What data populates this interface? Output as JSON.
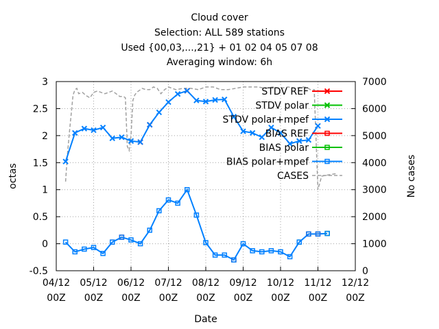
{
  "chart_data": {
    "type": "line",
    "title_lines": [
      "Cloud cover",
      "Selection: ALL    589 stations",
      "Used {00,03,...,21} + 01 02 04 05 07 08",
      "Averaging window:  6h"
    ],
    "xlabel": "Date",
    "ylabel": "octas",
    "y2label": "No cases",
    "xlim": [
      0,
      8
    ],
    "ylim": [
      -0.5,
      3
    ],
    "y2lim": [
      0,
      7000
    ],
    "xticks": [
      {
        "x": 0,
        "line1": "04/12",
        "line2": "00Z"
      },
      {
        "x": 1,
        "line1": "05/12",
        "line2": "00Z"
      },
      {
        "x": 2,
        "line1": "06/12",
        "line2": "00Z"
      },
      {
        "x": 3,
        "line1": "07/12",
        "line2": "00Z"
      },
      {
        "x": 4,
        "line1": "08/12",
        "line2": "00Z"
      },
      {
        "x": 5,
        "line1": "09/12",
        "line2": "00Z"
      },
      {
        "x": 6,
        "line1": "10/12",
        "line2": "00Z"
      },
      {
        "x": 7,
        "line1": "11/12",
        "line2": "00Z"
      },
      {
        "x": 8,
        "line1": "12/12",
        "line2": "00Z"
      }
    ],
    "yticks": [
      "-0.5",
      "0",
      "0.5",
      "1",
      "1.5",
      "2",
      "2.5",
      "3"
    ],
    "y2ticks": [
      "0",
      "1000",
      "2000",
      "3000",
      "4000",
      "5000",
      "6000",
      "7000"
    ],
    "grid": true,
    "legend_position": "top-right",
    "legend": [
      {
        "label": "STDV REF",
        "color": "#ff0000",
        "marker": "x"
      },
      {
        "label": "STDV polar",
        "color": "#00c000",
        "marker": "x"
      },
      {
        "label": "STDV polar+mpef",
        "color": "#0080ff",
        "marker": "x"
      },
      {
        "label": "BIAS REF",
        "color": "#ff0000",
        "marker": "square"
      },
      {
        "label": "BIAS polar",
        "color": "#00c000",
        "marker": "square"
      },
      {
        "label": "BIAS polar+mpef",
        "color": "#0080ff",
        "marker": "square"
      },
      {
        "label": "CASES",
        "color": "#a0a0a0",
        "marker": "none"
      }
    ],
    "series": [
      {
        "name": "STDV polar+mpef",
        "axis": "y",
        "x": [
          0.25,
          0.5,
          0.75,
          1.0,
          1.25,
          1.5,
          1.75,
          2.0,
          2.25,
          2.5,
          2.75,
          3.0,
          3.25,
          3.5,
          3.75,
          4.0,
          4.25,
          4.5,
          4.75,
          5.0,
          5.25,
          5.5,
          5.75,
          6.0,
          6.25,
          6.5,
          6.75,
          7.0,
          7.25
        ],
        "y": [
          1.52,
          2.05,
          2.13,
          2.1,
          2.15,
          1.95,
          1.97,
          1.9,
          1.88,
          2.2,
          2.43,
          2.62,
          2.77,
          2.83,
          2.65,
          2.63,
          2.66,
          2.67,
          2.35,
          2.08,
          2.05,
          1.97,
          2.15,
          2.05,
          1.85,
          1.9,
          1.92,
          2.18,
          null
        ]
      },
      {
        "name": "BIAS polar+mpef",
        "axis": "y",
        "x": [
          0.25,
          0.5,
          0.75,
          1.0,
          1.25,
          1.5,
          1.75,
          2.0,
          2.25,
          2.5,
          2.75,
          3.0,
          3.25,
          3.5,
          3.75,
          4.0,
          4.25,
          4.5,
          4.75,
          5.0,
          5.25,
          5.5,
          5.75,
          6.0,
          6.25,
          6.5,
          6.75,
          7.0,
          7.25
        ],
        "y": [
          0.03,
          -0.15,
          -0.1,
          -0.07,
          -0.18,
          0.03,
          0.12,
          0.07,
          0.0,
          0.25,
          0.61,
          0.81,
          0.75,
          1.0,
          0.53,
          0.02,
          -0.21,
          -0.21,
          -0.3,
          0.0,
          -0.13,
          -0.15,
          -0.13,
          -0.15,
          -0.24,
          0.03,
          0.18,
          0.18,
          0.19
        ]
      },
      {
        "name": "CASES",
        "axis": "y2",
        "x": [
          0.25,
          0.3,
          0.35,
          0.4,
          0.45,
          0.5,
          0.55,
          0.6,
          0.7,
          0.8,
          0.9,
          1.0,
          1.1,
          1.2,
          1.3,
          1.4,
          1.5,
          1.6,
          1.7,
          1.8,
          1.85,
          1.9,
          1.95,
          2.0,
          2.05,
          2.1,
          2.15,
          2.2,
          2.3,
          2.4,
          2.5,
          2.6,
          2.7,
          2.8,
          2.9,
          3.0,
          3.2,
          3.4,
          3.6,
          3.8,
          4.0,
          4.2,
          4.4,
          4.6,
          4.8,
          5.0,
          5.2,
          5.4,
          5.6,
          5.8,
          6.0,
          6.2,
          6.4,
          6.6,
          6.7,
          6.8,
          6.9,
          7.0,
          7.1,
          7.3,
          7.5
        ],
        "y": [
          3300,
          4300,
          5100,
          5800,
          6500,
          6700,
          6750,
          6550,
          6600,
          6480,
          6400,
          6600,
          6650,
          6600,
          6550,
          6600,
          6650,
          6550,
          6450,
          6450,
          6400,
          4600,
          4450,
          5000,
          6300,
          6500,
          6600,
          6650,
          6750,
          6700,
          6700,
          6800,
          6750,
          6550,
          6700,
          6800,
          6700,
          6750,
          6750,
          6700,
          6800,
          6800,
          6700,
          6700,
          6750,
          6800,
          6800,
          6800,
          6750,
          6800,
          6750,
          6800,
          6750,
          6800,
          6780,
          6700,
          6700,
          3000,
          3500,
          3550,
          3600
        ]
      }
    ],
    "overlay_points": [
      {
        "name": "STDV REF",
        "x": [
          2.25,
          2.5,
          3.5
        ],
        "y": [
          1.88,
          2.2,
          2.83
        ]
      },
      {
        "name": "BIAS REF",
        "x": [
          1.5,
          1.75,
          4.75,
          6.75,
          7.0
        ],
        "y": [
          0.03,
          0.12,
          -0.3,
          0.18,
          0.18
        ]
      },
      {
        "name": "BIAS polar",
        "x": [
          6.5,
          7.25
        ],
        "y": [
          0.03,
          0.19
        ]
      }
    ]
  }
}
